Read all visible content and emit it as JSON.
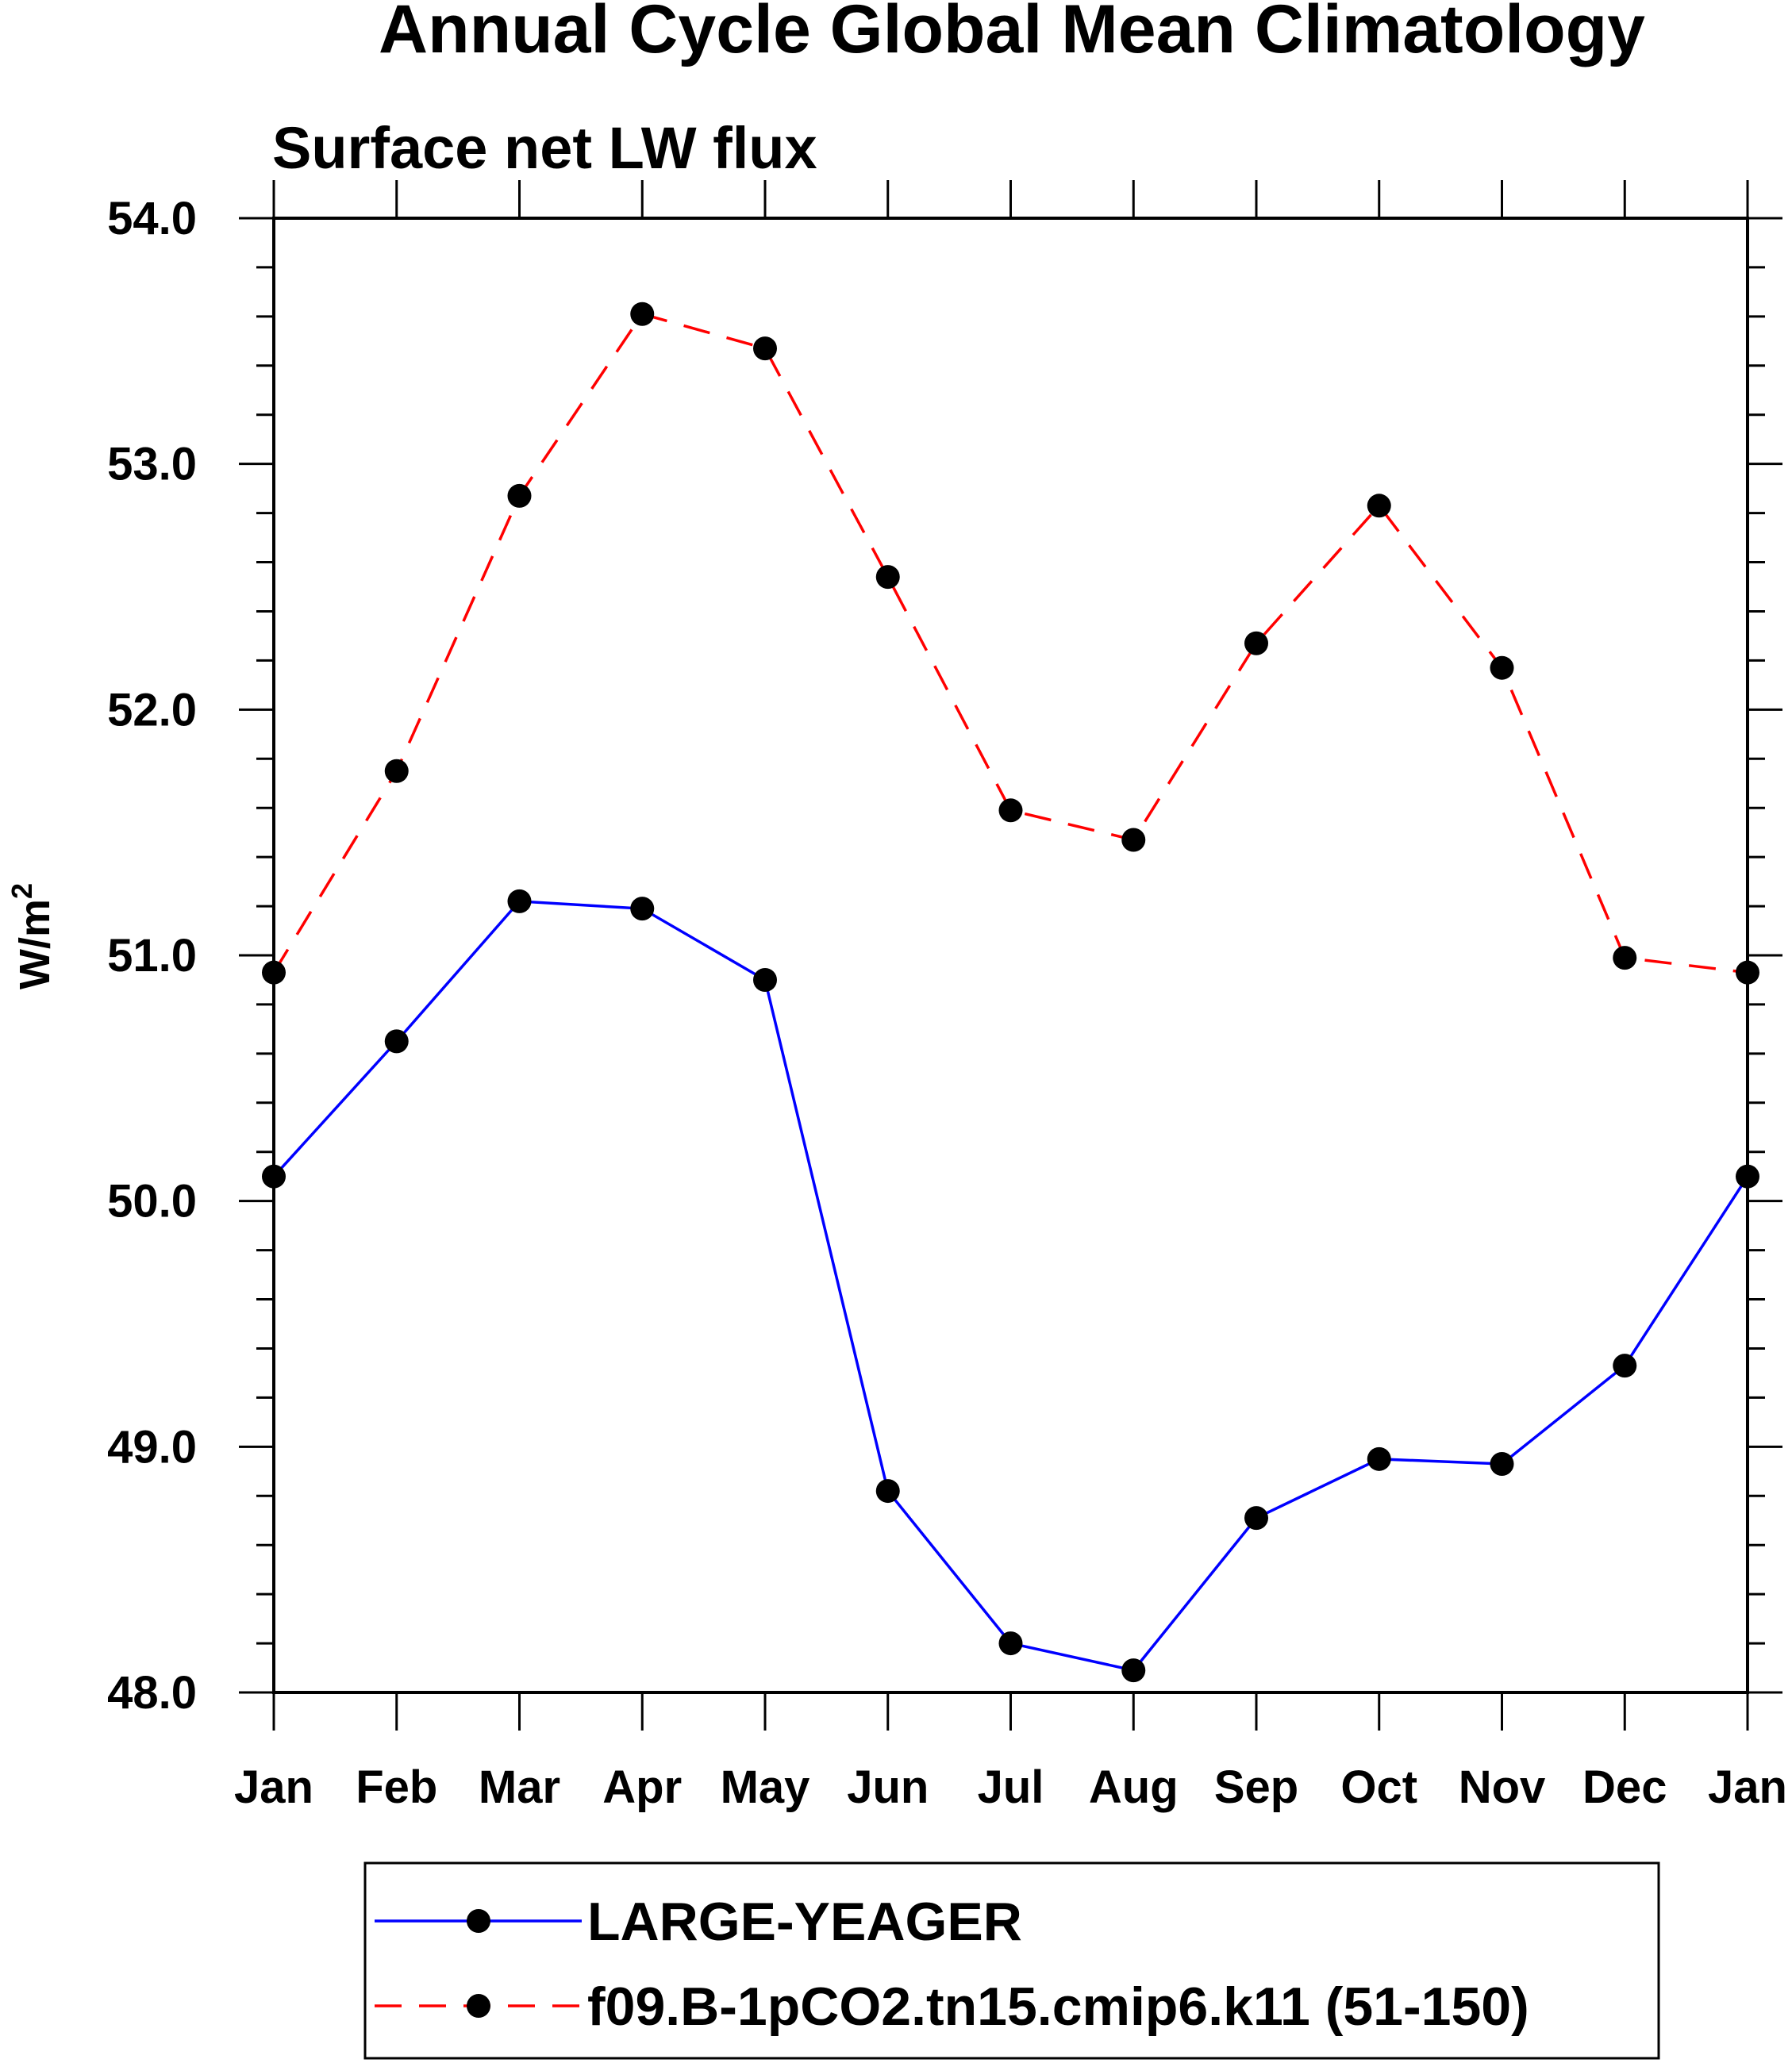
{
  "chart_data": {
    "type": "line",
    "title": "Annual Cycle Global Mean Climatology",
    "subtitle": "Surface net LW flux",
    "ylabel": "W/m",
    "ylabel_sup": "2",
    "xlabel": "",
    "categories": [
      "Jan",
      "Feb",
      "Mar",
      "Apr",
      "May",
      "Jun",
      "Jul",
      "Aug",
      "Sep",
      "Oct",
      "Nov",
      "Dec",
      "Jan"
    ],
    "ylim": [
      48.0,
      54.0
    ],
    "yticks": [
      "48.0",
      "49.0",
      "50.0",
      "51.0",
      "52.0",
      "53.0",
      "54.0"
    ],
    "grid": false,
    "legend_position": "bottom",
    "series": [
      {
        "name": "LARGE-YEAGER",
        "color": "#0000ff",
        "dash": "solid",
        "values": [
          50.1,
          50.65,
          51.22,
          51.19,
          50.9,
          48.82,
          48.2,
          48.09,
          48.71,
          48.95,
          48.93,
          49.33,
          50.1
        ]
      },
      {
        "name": "f09.B-1pCO2.tn15.cmip6.k11 (51-150)",
        "color": "#ff0000",
        "dash": "dashed",
        "values": [
          50.93,
          51.75,
          52.87,
          53.61,
          53.47,
          52.54,
          51.59,
          51.47,
          52.27,
          52.83,
          52.17,
          50.99,
          50.93
        ]
      }
    ]
  }
}
